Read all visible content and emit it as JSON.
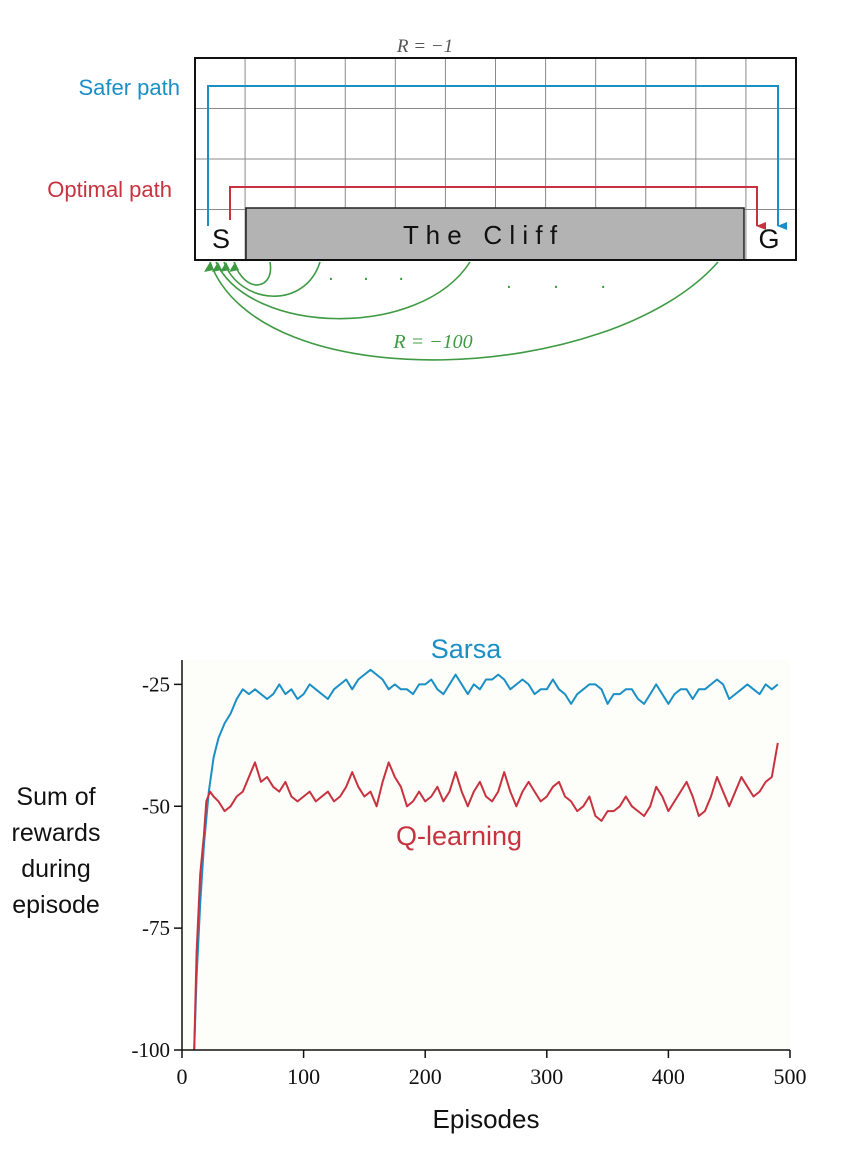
{
  "colors": {
    "safer": "#1a8fc4",
    "optimal": "#c8323f",
    "cliff_jump": "#3f9a44",
    "sarsa": "#1a8fc4",
    "qlearning": "#c8323f",
    "cliff_fill": "#b3b3b3",
    "grid": "#8a8a8a",
    "background": "#ffffff",
    "plot_background": "#fdfdf9"
  },
  "diagram": {
    "step_reward": "R = −1",
    "safer_label": "Safer path",
    "optimal_label": "Optimal path",
    "start_label": "S",
    "goal_label": "G",
    "cliff_label": "T h e   C l i f f",
    "cliff_reward": "R = −100",
    "ellipsis_1": ". . .",
    "ellipsis_2": ". . ."
  },
  "chart_data": {
    "type": "line",
    "xlabel": "Episodes",
    "ylabel_lines": [
      "Sum of",
      "rewards",
      "during",
      "episode"
    ],
    "xlim": [
      0,
      500
    ],
    "ylim": [
      -100,
      -20
    ],
    "xticks": [
      0,
      100,
      200,
      300,
      400,
      500
    ],
    "xtick_labels": [
      "0",
      "100",
      "200",
      "300",
      "400",
      "500"
    ],
    "yticks": [
      -100,
      -75,
      -50,
      -25
    ],
    "ytick_labels": [
      "-100",
      "-75",
      "-50",
      "-25"
    ],
    "grid": false,
    "series": [
      {
        "name": "Sarsa",
        "x": [
          10,
          12,
          15,
          18,
          22,
          26,
          30,
          35,
          40,
          45,
          50,
          55,
          60,
          65,
          70,
          75,
          80,
          85,
          90,
          95,
          100,
          105,
          110,
          115,
          120,
          125,
          130,
          135,
          140,
          145,
          150,
          155,
          160,
          165,
          170,
          175,
          180,
          185,
          190,
          195,
          200,
          205,
          210,
          215,
          220,
          225,
          230,
          235,
          240,
          245,
          250,
          255,
          260,
          265,
          270,
          275,
          280,
          285,
          290,
          295,
          300,
          305,
          310,
          315,
          320,
          325,
          330,
          335,
          340,
          345,
          350,
          355,
          360,
          365,
          370,
          375,
          380,
          385,
          390,
          395,
          400,
          405,
          410,
          415,
          420,
          425,
          430,
          435,
          440,
          445,
          450,
          455,
          460,
          465,
          470,
          475,
          480,
          485,
          490
        ],
        "y": [
          -100,
          -85,
          -70,
          -58,
          -47,
          -40,
          -36,
          -33,
          -31,
          -28,
          -26,
          -27,
          -26,
          -27,
          -28,
          -27,
          -25,
          -27,
          -26,
          -28,
          -27,
          -25,
          -26,
          -27,
          -28,
          -26,
          -25,
          -24,
          -26,
          -24,
          -23,
          -22,
          -23,
          -24,
          -26,
          -25,
          -26,
          -26,
          -27,
          -25,
          -25,
          -24,
          -26,
          -27,
          -25,
          -23,
          -25,
          -27,
          -25,
          -26,
          -24,
          -24,
          -23,
          -24,
          -26,
          -25,
          -24,
          -25,
          -27,
          -26,
          -26,
          -24,
          -26,
          -27,
          -29,
          -27,
          -26,
          -25,
          -25,
          -26,
          -29,
          -27,
          -27,
          -26,
          -26,
          -28,
          -29,
          -27,
          -25,
          -27,
          -29,
          -27,
          -26,
          -26,
          -28,
          -26,
          -26,
          -25,
          -24,
          -25,
          -28,
          -27,
          -26,
          -25,
          -26,
          -27,
          -25,
          -26,
          -25
        ]
      },
      {
        "name": "Q-learning",
        "x": [
          10,
          12,
          15,
          18,
          20,
          23,
          26,
          30,
          35,
          40,
          45,
          50,
          55,
          60,
          65,
          70,
          75,
          80,
          85,
          90,
          95,
          100,
          105,
          110,
          115,
          120,
          125,
          130,
          135,
          140,
          145,
          150,
          155,
          160,
          165,
          170,
          175,
          180,
          185,
          190,
          195,
          200,
          205,
          210,
          215,
          220,
          225,
          230,
          235,
          240,
          245,
          250,
          255,
          260,
          265,
          270,
          275,
          280,
          285,
          290,
          295,
          300,
          305,
          310,
          315,
          320,
          325,
          330,
          335,
          340,
          345,
          350,
          355,
          360,
          365,
          370,
          375,
          380,
          385,
          390,
          395,
          400,
          405,
          410,
          415,
          420,
          425,
          430,
          435,
          440,
          445,
          450,
          455,
          460,
          465,
          470,
          475,
          480,
          485,
          490
        ],
        "y": [
          -100,
          -80,
          -64,
          -56,
          -49,
          -47,
          -48,
          -49,
          -51,
          -50,
          -48,
          -47,
          -44,
          -41,
          -45,
          -44,
          -46,
          -47,
          -45,
          -48,
          -49,
          -48,
          -47,
          -49,
          -48,
          -47,
          -49,
          -48,
          -46,
          -43,
          -46,
          -48,
          -47,
          -50,
          -45,
          -41,
          -44,
          -46,
          -50,
          -49,
          -47,
          -49,
          -48,
          -46,
          -49,
          -47,
          -43,
          -47,
          -50,
          -47,
          -45,
          -48,
          -49,
          -47,
          -43,
          -47,
          -50,
          -47,
          -45,
          -47,
          -49,
          -48,
          -46,
          -45,
          -48,
          -49,
          -51,
          -50,
          -48,
          -52,
          -53,
          -51,
          -51,
          -50,
          -48,
          -50,
          -51,
          -52,
          -50,
          -46,
          -48,
          -51,
          -49,
          -47,
          -45,
          -48,
          -52,
          -51,
          -48,
          -44,
          -47,
          -50,
          -47,
          -44,
          -46,
          -48,
          -47,
          -45,
          -44,
          -37
        ]
      }
    ]
  }
}
